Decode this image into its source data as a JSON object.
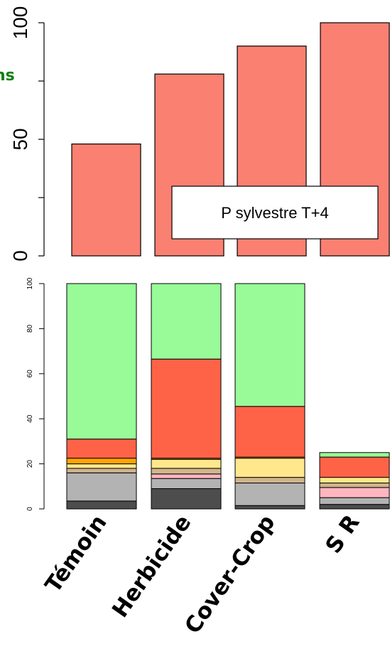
{
  "chart_data": [
    {
      "type": "bar",
      "ylabel_fragment": "ns",
      "yticks": [
        0,
        50,
        100
      ],
      "ylim": [
        0,
        100
      ],
      "legend": "P sylvestre T+4",
      "bar_color": "#fa8072",
      "values": [
        48,
        78,
        90,
        100
      ]
    },
    {
      "type": "bar",
      "stacked": true,
      "categories": [
        "Témoin",
        "Herbicide",
        "Cover-Crop",
        "S R"
      ],
      "yticks": [
        0,
        20,
        40,
        60,
        80,
        100
      ],
      "ylim": [
        0,
        100
      ],
      "stack_colors": [
        "#4d4d4d",
        "#b3b3b3",
        "#ffb6c1",
        "#d2b48c",
        "#ffe88c",
        "#ffa500",
        "#ff6347",
        "#98fb98"
      ],
      "stacks": [
        [
          3.5,
          12.5,
          0,
          2,
          2,
          2.5,
          8.5,
          69
        ],
        [
          9,
          4.5,
          2,
          2.5,
          4,
          0.5,
          44,
          33.5
        ],
        [
          1.5,
          10,
          0,
          2.5,
          8.5,
          0.5,
          22.5,
          54.5
        ],
        [
          2,
          3,
          4.5,
          2,
          2.5,
          0,
          9,
          2
        ]
      ]
    }
  ]
}
